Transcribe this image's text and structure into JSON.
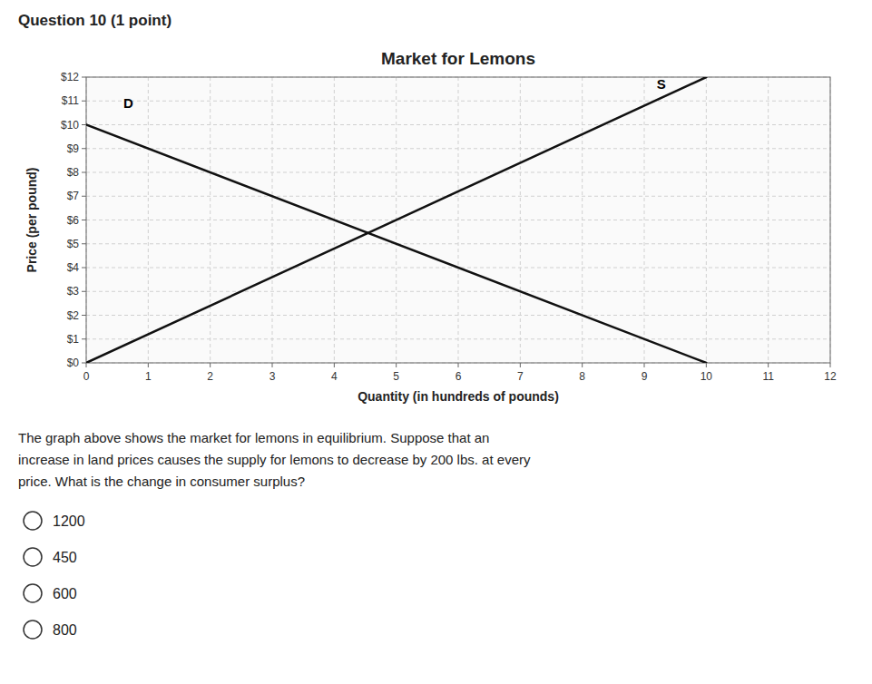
{
  "chart_data": {
    "type": "line",
    "title": "Market for Lemons",
    "x_label": "Quantity (in hundreds of pounds)",
    "y_label": "Price (per pound)",
    "x": [
      0,
      10
    ],
    "series": [
      {
        "values": [
          10,
          0
        ],
        "color": "#111111"
      },
      {
        "values": [
          0,
          12
        ],
        "color": "#111111"
      }
    ],
    "annotations": [
      {
        "text": "D",
        "x": 0.6,
        "y": 10.7
      },
      {
        "text": "S",
        "x": 9.2,
        "y": 11.5
      }
    ],
    "xlim": [
      0,
      12
    ],
    "ylim": [
      0,
      12
    ],
    "xticks": [
      0,
      1,
      2,
      3,
      4,
      5,
      6,
      7,
      8,
      9,
      10,
      11,
      12
    ],
    "yticks": [
      {
        "value": 0,
        "label": "$0"
      },
      {
        "value": 1,
        "label": "$1"
      },
      {
        "value": 2,
        "label": "$2"
      },
      {
        "value": 3,
        "label": "$3"
      },
      {
        "value": 4,
        "label": "$4"
      },
      {
        "value": 5,
        "label": "$5"
      },
      {
        "value": 6,
        "label": "$6"
      },
      {
        "value": 7,
        "label": "$7"
      },
      {
        "value": 8,
        "label": "$8"
      },
      {
        "value": 9,
        "label": "$9"
      },
      {
        "value": 10,
        "label": "$10"
      },
      {
        "value": 11,
        "label": "$11"
      },
      {
        "value": 12,
        "label": "$12"
      }
    ],
    "grid": true
  },
  "question": {
    "header": "Question 10 (1 point)",
    "lines": [
      "The graph above shows the market for lemons in equilibrium. Suppose that an",
      "increase in land prices causes the supply for lemons to decrease by 200 lbs. at every",
      "price. What is the change in consumer surplus?"
    ],
    "choices": [
      "1200",
      "450",
      "600",
      "800"
    ]
  }
}
